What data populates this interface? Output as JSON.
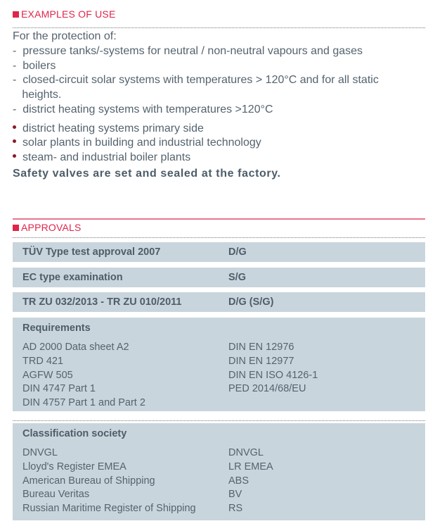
{
  "examples": {
    "heading": "EXAMPLES OF USE",
    "intro": "For the protection of:",
    "dash_items": [
      "-  pressure tanks/-systems for neutral / non-neutral vapours and gases",
      "-  boilers",
      "-  closed-circuit solar systems with temperatures > 120°C and for all static",
      "   heights.",
      "-  district heating systems with temperatures >120°C"
    ],
    "bullet_items": [
      "district heating systems primary side",
      "solar plants in building and industrial technology",
      "steam- and industrial boiler plants"
    ],
    "note": "Safety valves are set and sealed at the factory."
  },
  "approvals": {
    "heading": "APPROVALS",
    "rows": [
      {
        "name": "TÜV Type test approval 2007",
        "value": "D/G"
      },
      {
        "name": "EC type examination",
        "value": "S/G"
      },
      {
        "name": "TR ZU 032/2013 - TR ZU 010/2011",
        "value": "D/G (S/G)"
      }
    ],
    "requirements": {
      "title": "Requirements",
      "left": [
        "AD 2000 Data sheet A2",
        "TRD 421",
        "AGFW 505",
        "DIN 4747 Part 1",
        "DIN 4757 Part 1 and Part 2"
      ],
      "right": [
        "DIN EN 12976",
        "DIN EN 12977",
        "DIN EN ISO 4126-1",
        "PED 2014/68/EU"
      ]
    },
    "classification": {
      "title": "Classification society",
      "left": [
        "DNVGL",
        "Lloyd's Register EMEA",
        "American Bureau of Shipping",
        "Bureau Veritas",
        "Russian Maritime Register of Shipping"
      ],
      "right": [
        "DNVGL",
        "LR EMEA",
        "ABS",
        "BV",
        "RS"
      ]
    }
  }
}
